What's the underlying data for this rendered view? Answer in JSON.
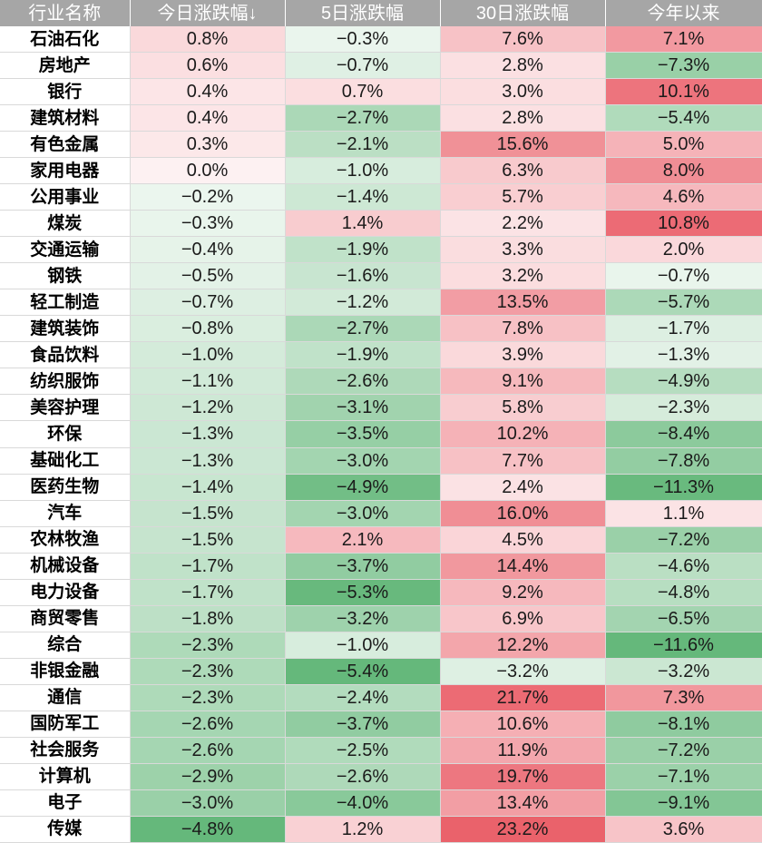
{
  "headers": [
    "行业名称",
    "今日涨跌幅↓",
    "5日涨跌幅",
    "30日涨跌幅",
    "今年以来"
  ],
  "colors": {
    "header_bg": "#a6a6a6",
    "header_text": "#ffffff",
    "positive": "#e8505b",
    "negative": "#54b06c"
  },
  "rows": [
    {
      "name": "石油石化",
      "today": "0.8%",
      "d5": "−0.3%",
      "d30": "7.6%",
      "ytd": "7.1%"
    },
    {
      "name": "房地产",
      "today": "0.6%",
      "d5": "−0.7%",
      "d30": "2.8%",
      "ytd": "−7.3%"
    },
    {
      "name": "银行",
      "today": "0.4%",
      "d5": "0.7%",
      "d30": "3.0%",
      "ytd": "10.1%"
    },
    {
      "name": "建筑材料",
      "today": "0.4%",
      "d5": "−2.7%",
      "d30": "2.8%",
      "ytd": "−5.4%"
    },
    {
      "name": "有色金属",
      "today": "0.3%",
      "d5": "−2.1%",
      "d30": "15.6%",
      "ytd": "5.0%"
    },
    {
      "name": "家用电器",
      "today": "0.0%",
      "d5": "−1.0%",
      "d30": "6.3%",
      "ytd": "8.0%"
    },
    {
      "name": "公用事业",
      "today": "−0.2%",
      "d5": "−1.4%",
      "d30": "5.7%",
      "ytd": "4.6%"
    },
    {
      "name": "煤炭",
      "today": "−0.3%",
      "d5": "1.4%",
      "d30": "2.2%",
      "ytd": "10.8%"
    },
    {
      "name": "交通运输",
      "today": "−0.4%",
      "d5": "−1.9%",
      "d30": "3.3%",
      "ytd": "2.0%"
    },
    {
      "name": "钢铁",
      "today": "−0.5%",
      "d5": "−1.6%",
      "d30": "3.2%",
      "ytd": "−0.7%"
    },
    {
      "name": "轻工制造",
      "today": "−0.7%",
      "d5": "−1.2%",
      "d30": "13.5%",
      "ytd": "−5.7%"
    },
    {
      "name": "建筑装饰",
      "today": "−0.8%",
      "d5": "−2.7%",
      "d30": "7.8%",
      "ytd": "−1.7%"
    },
    {
      "name": "食品饮料",
      "today": "−1.0%",
      "d5": "−1.9%",
      "d30": "3.9%",
      "ytd": "−1.3%"
    },
    {
      "name": "纺织服饰",
      "today": "−1.1%",
      "d5": "−2.6%",
      "d30": "9.1%",
      "ytd": "−4.9%"
    },
    {
      "name": "美容护理",
      "today": "−1.2%",
      "d5": "−3.1%",
      "d30": "5.8%",
      "ytd": "−2.3%"
    },
    {
      "name": "环保",
      "today": "−1.3%",
      "d5": "−3.5%",
      "d30": "10.2%",
      "ytd": "−8.4%"
    },
    {
      "name": "基础化工",
      "today": "−1.3%",
      "d5": "−3.0%",
      "d30": "7.7%",
      "ytd": "−7.8%"
    },
    {
      "name": "医药生物",
      "today": "−1.4%",
      "d5": "−4.9%",
      "d30": "2.4%",
      "ytd": "−11.3%"
    },
    {
      "name": "汽车",
      "today": "−1.5%",
      "d5": "−3.0%",
      "d30": "16.0%",
      "ytd": "1.1%"
    },
    {
      "name": "农林牧渔",
      "today": "−1.5%",
      "d5": "2.1%",
      "d30": "4.5%",
      "ytd": "−7.2%"
    },
    {
      "name": "机械设备",
      "today": "−1.7%",
      "d5": "−3.7%",
      "d30": "14.4%",
      "ytd": "−4.6%"
    },
    {
      "name": "电力设备",
      "today": "−1.7%",
      "d5": "−5.3%",
      "d30": "9.2%",
      "ytd": "−4.8%"
    },
    {
      "name": "商贸零售",
      "today": "−1.8%",
      "d5": "−3.2%",
      "d30": "6.9%",
      "ytd": "−6.5%"
    },
    {
      "name": "综合",
      "today": "−2.3%",
      "d5": "−1.0%",
      "d30": "12.2%",
      "ytd": "−11.6%"
    },
    {
      "name": "非银金融",
      "today": "−2.3%",
      "d5": "−5.4%",
      "d30": "−3.2%",
      "ytd": "−3.2%"
    },
    {
      "name": "通信",
      "today": "−2.3%",
      "d5": "−2.4%",
      "d30": "21.7%",
      "ytd": "7.3%"
    },
    {
      "name": "国防军工",
      "today": "−2.6%",
      "d5": "−3.7%",
      "d30": "10.6%",
      "ytd": "−8.1%"
    },
    {
      "name": "社会服务",
      "today": "−2.6%",
      "d5": "−2.5%",
      "d30": "11.9%",
      "ytd": "−7.2%"
    },
    {
      "name": "计算机",
      "today": "−2.9%",
      "d5": "−2.6%",
      "d30": "19.7%",
      "ytd": "−7.1%"
    },
    {
      "name": "电子",
      "today": "−3.0%",
      "d5": "−4.0%",
      "d30": "13.4%",
      "ytd": "−9.1%"
    },
    {
      "name": "传媒",
      "today": "−4.8%",
      "d5": "1.2%",
      "d30": "23.2%",
      "ytd": "3.6%"
    }
  ]
}
